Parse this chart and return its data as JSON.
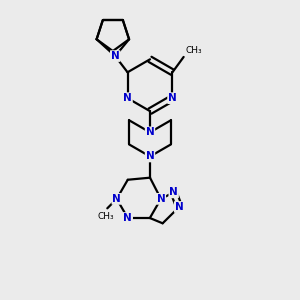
{
  "background_color": "#ebebeb",
  "bond_color": "#000000",
  "atom_color": "#0000cc",
  "line_width": 1.6,
  "figsize": [
    3.0,
    3.0
  ],
  "dpi": 100,
  "xlim": [
    0,
    10
  ],
  "ylim": [
    0,
    10
  ]
}
